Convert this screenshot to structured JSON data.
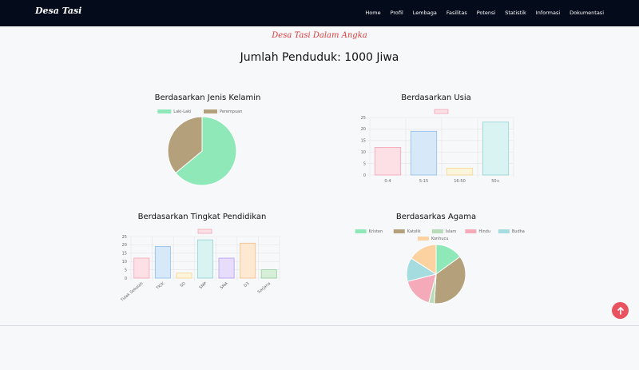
{
  "brand": "Desa Tasi",
  "nav": [
    "Home",
    "Profil",
    "Lembaga",
    "Fasilitas",
    "Potensi",
    "Statistik",
    "Informasi",
    "Dokumentasi"
  ],
  "subtitle": "Desa Tasi Dalam Angka",
  "headline": "Jumlah Penduduk: 1000 Jiwa",
  "colors": {
    "navbar": "#040c1c",
    "accent": "#e03a3a",
    "top_button": "#e8535f"
  },
  "top_button_icon": "arrow-up-icon",
  "chart_data": [
    {
      "type": "pie",
      "title": "Berdasarkan Jenis Kelamin",
      "legend_position": "top",
      "categories": [
        "Laki-Laki",
        "Perempuan"
      ],
      "values": [
        64,
        36
      ],
      "colors": [
        "#8ee8b8",
        "#b4a07a"
      ]
    },
    {
      "type": "bar",
      "title": "Berdasarkan Usia",
      "legend_position": "top",
      "categories": [
        "0-4",
        "5-15",
        "16-50",
        "50+"
      ],
      "values": [
        12,
        19,
        3,
        23
      ],
      "ylim": [
        0,
        25
      ],
      "yticks": [
        0,
        5,
        10,
        15,
        20,
        25
      ],
      "grid": true,
      "fill_colors": [
        "#fde0e6",
        "#d7e9f9",
        "#fdf4dc",
        "#d9f2f2"
      ],
      "stroke_colors": [
        "#f4a3b4",
        "#8ebce6",
        "#f5d78e",
        "#92d4d4"
      ]
    },
    {
      "type": "bar",
      "title": "Berdasarkan Tingkat Pendidikan",
      "legend_position": "top",
      "categories": [
        "Tidak Sekolah",
        "TK/K",
        "SD",
        "SMP",
        "SMA",
        "D3",
        "Sarjana"
      ],
      "values": [
        12,
        19,
        3,
        23,
        12,
        21,
        5
      ],
      "ylim": [
        0,
        25
      ],
      "yticks": [
        0,
        5,
        10,
        15,
        20,
        25
      ],
      "grid": true,
      "fill_colors": [
        "#fde0e6",
        "#d7e9f9",
        "#fdf4dc",
        "#d9f2f2",
        "#e7ddfb",
        "#fde8d2",
        "#d7efd9"
      ],
      "stroke_colors": [
        "#f4a3b4",
        "#8ebce6",
        "#f5d78e",
        "#92d4d4",
        "#b59cf0",
        "#f5bf8a",
        "#8fcf96"
      ]
    },
    {
      "type": "pie",
      "title": "Berdasarkas Agama",
      "legend_position": "top",
      "categories": [
        "Kristen",
        "Katolik",
        "Islam",
        "Hindu",
        "Budha",
        "Konhucu"
      ],
      "values": [
        15,
        36,
        3,
        17,
        13,
        16
      ],
      "colors": [
        "#8ee8b8",
        "#b4a07a",
        "#b9dcb8",
        "#f4aab9",
        "#a4dce0",
        "#fcd3a0"
      ]
    }
  ]
}
